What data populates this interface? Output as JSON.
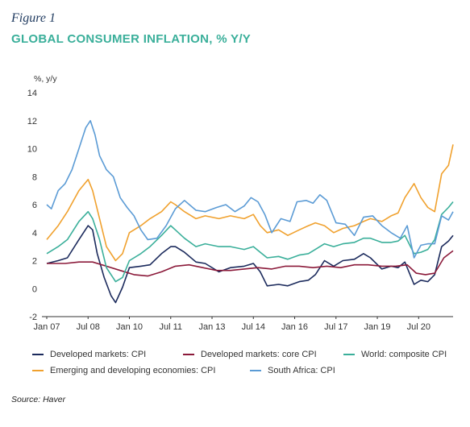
{
  "figure_label": "Figure 1",
  "title": "GLOBAL CONSUMER INFLATION, % Y/Y",
  "source": "Source: Haver",
  "chart_data": {
    "type": "line",
    "title": "GLOBAL CONSUMER INFLATION, % Y/Y",
    "ylabel": "%, y/y",
    "xlabel": "",
    "ylim": [
      -2,
      14
    ],
    "yticks": [
      "-2",
      "0",
      "2",
      "4",
      "6",
      "8",
      "10",
      "12",
      "14"
    ],
    "xlim": [
      "2007-01",
      "2021-10"
    ],
    "xticks": [
      "Jan 07",
      "Jul 08",
      "Jan 10",
      "Jul 11",
      "Jan 13",
      "Jul 14",
      "Jan 16",
      "Jul 17",
      "Jan 19",
      "Jul 20"
    ],
    "xtick_dates": [
      "2007-01",
      "2008-07",
      "2010-01",
      "2011-07",
      "2013-01",
      "2014-07",
      "2016-01",
      "2017-07",
      "2019-01",
      "2020-07"
    ],
    "grid": false,
    "legend_placement": "bottom",
    "series": [
      {
        "name": "Developed markets: CPI",
        "color": "#1b2a5c",
        "x": [
          "2007-01",
          "2007-06",
          "2007-10",
          "2008-03",
          "2008-07",
          "2008-09",
          "2008-11",
          "2009-02",
          "2009-05",
          "2009-07",
          "2009-10",
          "2010-01",
          "2010-06",
          "2010-10",
          "2011-03",
          "2011-07",
          "2011-09",
          "2012-01",
          "2012-06",
          "2012-10",
          "2013-04",
          "2013-09",
          "2014-03",
          "2014-07",
          "2014-10",
          "2015-01",
          "2015-06",
          "2015-10",
          "2016-03",
          "2016-07",
          "2016-10",
          "2017-02",
          "2017-06",
          "2017-10",
          "2018-03",
          "2018-07",
          "2018-10",
          "2019-03",
          "2019-07",
          "2019-10",
          "2020-01",
          "2020-05",
          "2020-08",
          "2020-11",
          "2021-02",
          "2021-05",
          "2021-08",
          "2021-10"
        ],
        "y": [
          1.8,
          2.0,
          2.2,
          3.5,
          4.5,
          4.2,
          2.5,
          0.8,
          -0.5,
          -1.0,
          0.1,
          1.5,
          1.6,
          1.7,
          2.5,
          3.0,
          3.0,
          2.6,
          1.9,
          1.8,
          1.2,
          1.5,
          1.6,
          1.8,
          1.2,
          0.2,
          0.3,
          0.2,
          0.5,
          0.6,
          1.0,
          2.0,
          1.6,
          2.0,
          2.1,
          2.5,
          2.2,
          1.4,
          1.6,
          1.5,
          1.9,
          0.3,
          0.6,
          0.5,
          1.0,
          3.0,
          3.4,
          3.8
        ]
      },
      {
        "name": "Developed markets: core CPI",
        "color": "#8b1a3a",
        "x": [
          "2007-01",
          "2007-09",
          "2008-03",
          "2008-09",
          "2009-03",
          "2009-09",
          "2010-03",
          "2010-09",
          "2011-03",
          "2011-09",
          "2012-03",
          "2012-09",
          "2013-03",
          "2013-09",
          "2014-03",
          "2014-09",
          "2015-03",
          "2015-09",
          "2016-03",
          "2016-09",
          "2017-03",
          "2017-09",
          "2018-03",
          "2018-09",
          "2019-03",
          "2019-09",
          "2020-02",
          "2020-06",
          "2020-10",
          "2021-02",
          "2021-06",
          "2021-10"
        ],
        "y": [
          1.8,
          1.8,
          1.9,
          1.9,
          1.6,
          1.3,
          1.0,
          0.9,
          1.2,
          1.6,
          1.7,
          1.5,
          1.3,
          1.3,
          1.4,
          1.5,
          1.4,
          1.6,
          1.6,
          1.5,
          1.6,
          1.5,
          1.7,
          1.7,
          1.6,
          1.6,
          1.7,
          1.1,
          1.0,
          1.1,
          2.2,
          2.7
        ]
      },
      {
        "name": "World: composite CPI",
        "color": "#3aaf9a",
        "x": [
          "2007-01",
          "2007-06",
          "2007-10",
          "2008-03",
          "2008-07",
          "2008-09",
          "2008-12",
          "2009-03",
          "2009-07",
          "2009-10",
          "2010-01",
          "2010-06",
          "2010-10",
          "2011-03",
          "2011-07",
          "2011-09",
          "2012-01",
          "2012-06",
          "2012-10",
          "2013-04",
          "2013-09",
          "2014-03",
          "2014-07",
          "2014-10",
          "2015-01",
          "2015-06",
          "2015-10",
          "2016-03",
          "2016-07",
          "2016-10",
          "2017-02",
          "2017-06",
          "2017-10",
          "2018-03",
          "2018-07",
          "2018-10",
          "2019-03",
          "2019-07",
          "2019-10",
          "2020-01",
          "2020-05",
          "2020-08",
          "2020-11",
          "2021-02",
          "2021-05",
          "2021-08",
          "2021-10"
        ],
        "y": [
          2.5,
          3.0,
          3.5,
          4.8,
          5.5,
          5.0,
          3.5,
          1.5,
          0.5,
          0.8,
          2.0,
          2.5,
          3.0,
          3.8,
          4.5,
          4.2,
          3.6,
          3.0,
          3.2,
          3.0,
          3.0,
          2.8,
          3.0,
          2.6,
          2.2,
          2.3,
          2.1,
          2.4,
          2.5,
          2.8,
          3.2,
          3.0,
          3.2,
          3.3,
          3.6,
          3.6,
          3.3,
          3.3,
          3.4,
          3.8,
          2.5,
          2.6,
          2.8,
          3.5,
          5.3,
          5.8,
          6.2
        ]
      },
      {
        "name": "Emerging and developing economies: CPI",
        "color": "#f0a12e",
        "x": [
          "2007-01",
          "2007-06",
          "2007-10",
          "2008-03",
          "2008-07",
          "2008-09",
          "2008-12",
          "2009-03",
          "2009-07",
          "2009-10",
          "2010-01",
          "2010-06",
          "2010-10",
          "2011-03",
          "2011-07",
          "2011-09",
          "2012-01",
          "2012-06",
          "2012-10",
          "2013-04",
          "2013-09",
          "2014-03",
          "2014-07",
          "2014-10",
          "2015-01",
          "2015-06",
          "2015-10",
          "2016-03",
          "2016-07",
          "2016-10",
          "2017-02",
          "2017-06",
          "2017-10",
          "2018-03",
          "2018-07",
          "2018-10",
          "2019-03",
          "2019-07",
          "2019-10",
          "2020-01",
          "2020-05",
          "2020-08",
          "2020-11",
          "2021-02",
          "2021-05",
          "2021-08",
          "2021-10"
        ],
        "y": [
          3.5,
          4.5,
          5.5,
          7.0,
          7.8,
          7.0,
          5.0,
          3.0,
          2.0,
          2.5,
          4.0,
          4.5,
          5.0,
          5.5,
          6.2,
          6.0,
          5.5,
          5.0,
          5.2,
          5.0,
          5.2,
          5.0,
          5.3,
          4.5,
          4.0,
          4.2,
          3.8,
          4.2,
          4.5,
          4.7,
          4.5,
          4.0,
          4.3,
          4.5,
          4.8,
          5.0,
          4.8,
          5.2,
          5.4,
          6.5,
          7.5,
          6.5,
          5.8,
          5.5,
          8.2,
          8.8,
          10.3
        ]
      },
      {
        "name": "South Africa: CPI",
        "color": "#5b9bd5",
        "x": [
          "2007-01",
          "2007-03",
          "2007-06",
          "2007-09",
          "2007-12",
          "2008-03",
          "2008-06",
          "2008-08",
          "2008-10",
          "2008-12",
          "2009-03",
          "2009-06",
          "2009-09",
          "2009-12",
          "2010-03",
          "2010-06",
          "2010-09",
          "2011-01",
          "2011-05",
          "2011-09",
          "2012-01",
          "2012-06",
          "2012-10",
          "2013-03",
          "2013-07",
          "2013-11",
          "2014-03",
          "2014-06",
          "2014-09",
          "2014-12",
          "2015-03",
          "2015-07",
          "2015-11",
          "2016-02",
          "2016-06",
          "2016-09",
          "2016-12",
          "2017-03",
          "2017-07",
          "2017-11",
          "2018-03",
          "2018-07",
          "2018-11",
          "2019-03",
          "2019-07",
          "2019-11",
          "2020-02",
          "2020-05",
          "2020-08",
          "2020-11",
          "2021-02",
          "2021-05",
          "2021-08",
          "2021-10"
        ],
        "y": [
          6.0,
          5.7,
          7.0,
          7.5,
          8.5,
          10.0,
          11.5,
          12.0,
          11.0,
          9.5,
          8.5,
          8.0,
          6.5,
          5.8,
          5.2,
          4.2,
          3.5,
          3.6,
          4.5,
          5.7,
          6.3,
          5.6,
          5.5,
          5.8,
          6.0,
          5.5,
          5.9,
          6.5,
          6.2,
          5.3,
          4.0,
          5.0,
          4.8,
          6.2,
          6.3,
          6.1,
          6.7,
          6.3,
          4.7,
          4.6,
          3.8,
          5.1,
          5.2,
          4.5,
          4.0,
          3.6,
          4.5,
          2.2,
          3.1,
          3.2,
          3.2,
          5.2,
          4.9,
          5.5
        ]
      }
    ]
  }
}
